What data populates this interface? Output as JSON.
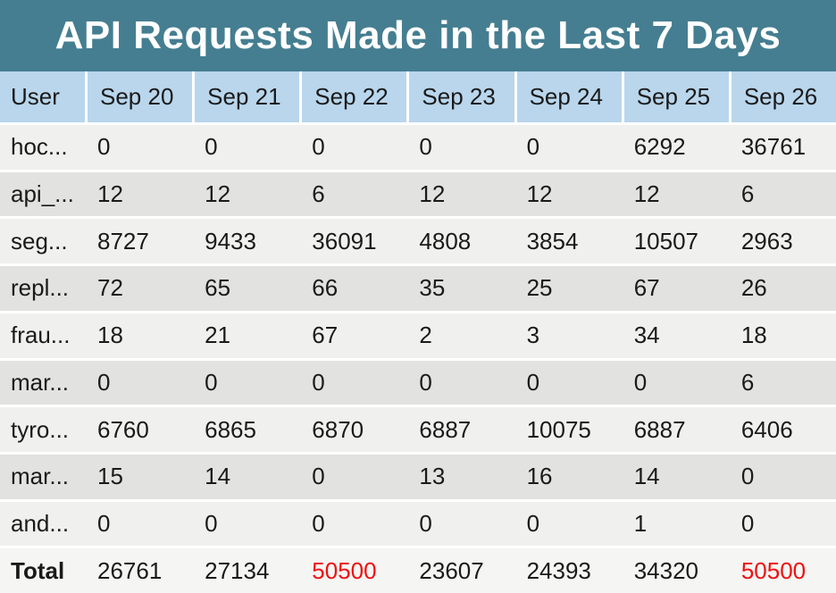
{
  "title": "API Requests Made in the Last 7 Days",
  "colors": {
    "title_bg": "#457e91",
    "title_text": "#ffffff",
    "header_bg": "#b9d6ec",
    "row_light": "#f0f0ee",
    "row_dark": "#e2e2e0",
    "total_bg": "#f5f5f3",
    "text": "#1a1a1a",
    "alert": "#ee1111"
  },
  "chart_data": {
    "type": "table",
    "title": "API Requests Made in the Last 7 Days",
    "columns": [
      "User",
      "Sep 20",
      "Sep 21",
      "Sep 22",
      "Sep 23",
      "Sep 24",
      "Sep 25",
      "Sep 26"
    ],
    "rows": [
      {
        "user": "hoc...",
        "values": [
          0,
          0,
          0,
          0,
          0,
          6292,
          36761
        ]
      },
      {
        "user": "api_...",
        "values": [
          12,
          12,
          6,
          12,
          12,
          12,
          6
        ]
      },
      {
        "user": "seg...",
        "values": [
          8727,
          9433,
          36091,
          4808,
          3854,
          10507,
          2963
        ]
      },
      {
        "user": "repl...",
        "values": [
          72,
          65,
          66,
          35,
          25,
          67,
          26
        ]
      },
      {
        "user": "frau...",
        "values": [
          18,
          21,
          67,
          2,
          3,
          34,
          18
        ]
      },
      {
        "user": "mar...",
        "values": [
          0,
          0,
          0,
          0,
          0,
          0,
          6
        ]
      },
      {
        "user": "tyro...",
        "values": [
          6760,
          6865,
          6870,
          6887,
          10075,
          6887,
          6406
        ]
      },
      {
        "user": "mar...",
        "values": [
          15,
          14,
          0,
          13,
          16,
          14,
          0
        ]
      },
      {
        "user": "and...",
        "values": [
          0,
          0,
          0,
          0,
          0,
          1,
          0
        ]
      }
    ],
    "total": {
      "label": "Total",
      "values": [
        26761,
        27134,
        50500,
        23607,
        24393,
        34320,
        50500
      ],
      "alert_indices": [
        2,
        6
      ]
    },
    "layout": {
      "striped": true,
      "header_separators": "white-vertical",
      "row_separators": "white-horizontal"
    }
  }
}
